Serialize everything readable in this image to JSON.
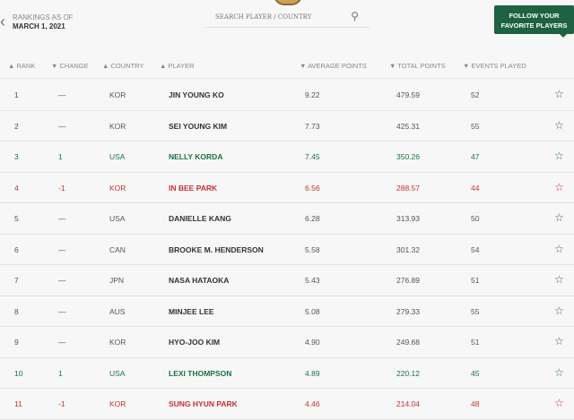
{
  "header": {
    "rankings_label": "RANKINGS AS OF",
    "date": "MARCH 1, 2021",
    "search_placeholder": "SEARCH PLAYER / COUNTRY",
    "follow_line1": "FOLLOW YOUR",
    "follow_line2": "FAVORITE PLAYERS"
  },
  "columns": [
    "▲ RANK",
    "▼ CHANGE",
    "▲ COUNTRY",
    "▲ PLAYER",
    "▼ AVERAGE POINTS",
    "▼ TOTAL POINTS",
    "▼ EVENTS PLAYED"
  ],
  "colors": {
    "up": "#1e7045",
    "down": "#c8312f",
    "brand": "#1e6341"
  },
  "rows": [
    {
      "rank": "1",
      "change": "—",
      "country": "KOR",
      "player": "JIN YOUNG KO",
      "avg": "9.22",
      "total": "479.59",
      "events": "52",
      "trend": "same"
    },
    {
      "rank": "2",
      "change": "—",
      "country": "KOR",
      "player": "SEI YOUNG KIM",
      "avg": "7.73",
      "total": "425.31",
      "events": "55",
      "trend": "same"
    },
    {
      "rank": "3",
      "change": "1",
      "country": "USA",
      "player": "NELLY KORDA",
      "avg": "7.45",
      "total": "350.26",
      "events": "47",
      "trend": "up"
    },
    {
      "rank": "4",
      "change": "-1",
      "country": "KOR",
      "player": "IN BEE PARK",
      "avg": "6.56",
      "total": "288.57",
      "events": "44",
      "trend": "down"
    },
    {
      "rank": "5",
      "change": "—",
      "country": "USA",
      "player": "DANIELLE KANG",
      "avg": "6.28",
      "total": "313.93",
      "events": "50",
      "trend": "same"
    },
    {
      "rank": "6",
      "change": "—",
      "country": "CAN",
      "player": "BROOKE M. HENDERSON",
      "avg": "5.58",
      "total": "301.32",
      "events": "54",
      "trend": "same"
    },
    {
      "rank": "7",
      "change": "—",
      "country": "JPN",
      "player": "NASA HATAOKA",
      "avg": "5.43",
      "total": "276.89",
      "events": "51",
      "trend": "same"
    },
    {
      "rank": "8",
      "change": "—",
      "country": "AUS",
      "player": "MINJEE LEE",
      "avg": "5.08",
      "total": "279.33",
      "events": "55",
      "trend": "same"
    },
    {
      "rank": "9",
      "change": "—",
      "country": "KOR",
      "player": "HYO-JOO KIM",
      "avg": "4.90",
      "total": "249.68",
      "events": "51",
      "trend": "same"
    },
    {
      "rank": "10",
      "change": "1",
      "country": "USA",
      "player": "LEXI THOMPSON",
      "avg": "4.89",
      "total": "220.12",
      "events": "45",
      "trend": "up"
    },
    {
      "rank": "11",
      "change": "-1",
      "country": "KOR",
      "player": "SUNG HYUN PARK",
      "avg": "4.46",
      "total": "214.04",
      "events": "48",
      "trend": "down"
    }
  ]
}
